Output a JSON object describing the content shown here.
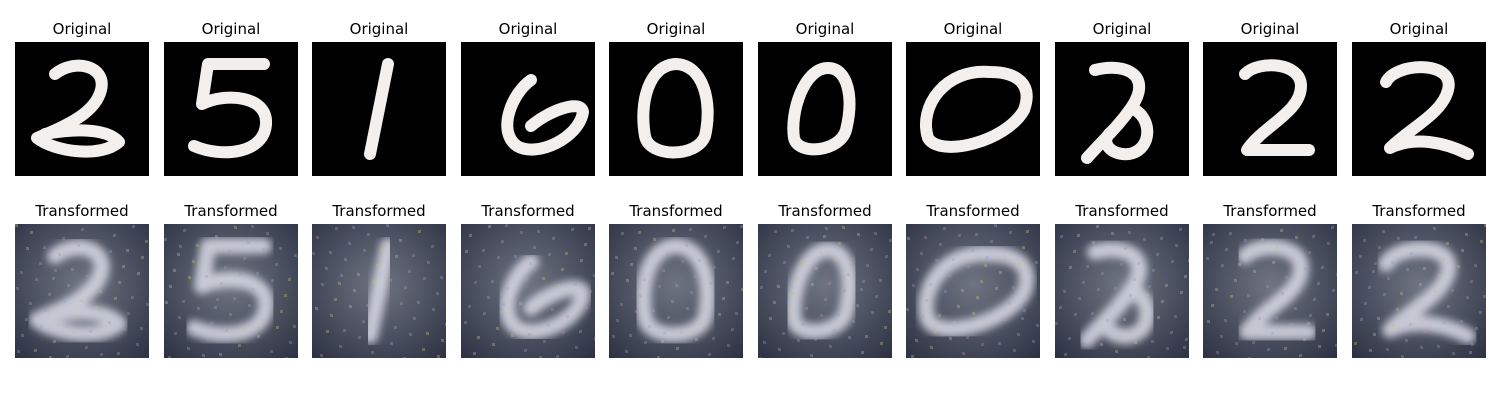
{
  "rows": [
    {
      "title": "Original",
      "style": "mnist",
      "digits": [
        "2",
        "5",
        "1",
        "6",
        "0",
        "0",
        "0",
        "2",
        "2",
        "2"
      ]
    },
    {
      "title": "Transformed",
      "style": "svhn",
      "digits": [
        "2",
        "5",
        "1",
        "6",
        "0",
        "0",
        "0",
        "2",
        "2",
        "2"
      ]
    }
  ],
  "colors": {
    "mnist_bg": "#000000",
    "mnist_stroke": "#f2efec",
    "svhn_bg_mid": "#6f7482",
    "svhn_bg_dark": "#2b3142",
    "svhn_stroke": "#d9dbe6"
  }
}
